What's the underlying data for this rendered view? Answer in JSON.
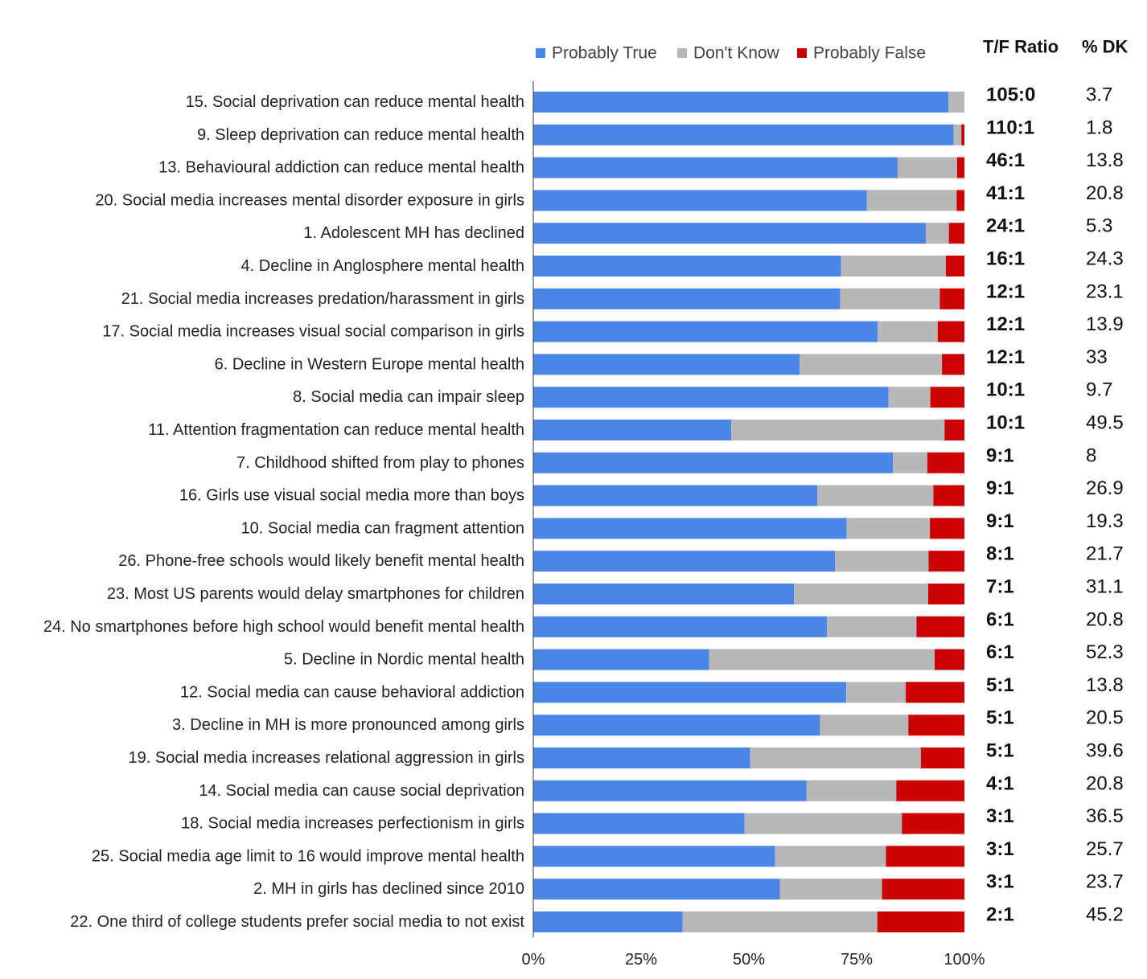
{
  "chart_data": {
    "type": "bar",
    "orientation": "horizontal",
    "stacked": true,
    "legend_position": "top",
    "xlim": [
      0,
      100
    ],
    "x_ticks": [
      "0%",
      "25%",
      "50%",
      "75%",
      "100%"
    ],
    "categories": [
      "15. Social deprivation can reduce mental health",
      "9. Sleep deprivation can reduce mental health",
      "13. Behavioural addiction can reduce mental health",
      "20. Social media increases mental disorder exposure in girls",
      "1. Adolescent MH has declined",
      "4. Decline in Anglosphere mental health",
      "21. Social media increases predation/harassment in girls",
      "17. Social media increases visual social comparison in girls",
      "6. Decline in Western Europe mental health",
      "8. Social media can impair sleep",
      "11. Attention fragmentation can reduce mental health",
      "7. Childhood shifted from play to phones",
      "16. Girls use visual social media more than boys",
      "10. Social media can fragment attention",
      "26. Phone-free schools would likely benefit mental health",
      "23. Most US parents would delay smartphones for children",
      "24. No smartphones before high school would benefit mental health",
      "5. Decline in Nordic mental health",
      "12. Social media can cause behavioral addiction",
      "3. Decline in MH is more pronounced among girls",
      "19. Social media increases relational aggression in girls",
      "14. Social media can cause social deprivation",
      "18. Social media increases perfectionism in girls",
      "25. Social media age limit to 16 would improve mental health",
      "2. MH in girls has declined since 2010",
      "22. One third of college students prefer social media to not exist"
    ],
    "series": [
      {
        "name": "Probably True",
        "color": "#4a86e8",
        "values": [
          96.3,
          97.5,
          84.5,
          77.4,
          91.1,
          71.4,
          71.2,
          79.9,
          61.8,
          82.4,
          45.9,
          83.4,
          65.9,
          72.7,
          70.0,
          60.5,
          68.1,
          40.8,
          72.6,
          66.5,
          50.3,
          63.4,
          49.0,
          56.1,
          57.2,
          34.6
        ]
      },
      {
        "name": "Don't Know",
        "color": "#b7b7b7",
        "values": [
          3.7,
          1.8,
          13.8,
          20.8,
          5.3,
          24.3,
          23.1,
          13.9,
          33,
          9.7,
          49.5,
          8,
          26.9,
          19.3,
          21.7,
          31.1,
          20.8,
          52.3,
          13.8,
          20.5,
          39.6,
          20.8,
          36.5,
          25.7,
          23.7,
          45.2
        ]
      },
      {
        "name": "Probably False",
        "color": "#cc0000",
        "values": [
          0,
          0.7,
          1.7,
          1.8,
          3.6,
          4.3,
          5.7,
          6.2,
          5.2,
          7.9,
          4.6,
          8.6,
          7.2,
          8.0,
          8.3,
          8.4,
          11.1,
          6.9,
          13.6,
          13.0,
          10.1,
          15.8,
          14.5,
          18.2,
          19.1,
          20.2
        ]
      }
    ],
    "columns": {
      "ratio_header": "T/F Ratio",
      "dk_header": "% DK",
      "ratio": [
        "105:0",
        "110:1",
        "46:1",
        "41:1",
        "24:1",
        "16:1",
        "12:1",
        "12:1",
        "12:1",
        "10:1",
        "10:1",
        "9:1",
        "9:1",
        "9:1",
        "8:1",
        "7:1",
        "6:1",
        "6:1",
        "5:1",
        "5:1",
        "5:1",
        "4:1",
        "3:1",
        "3:1",
        "3:1",
        "2:1"
      ],
      "dk": [
        "3.7",
        "1.8",
        "13.8",
        "20.8",
        "5.3",
        "24.3",
        "23.1",
        "13.9",
        "33",
        "9.7",
        "49.5",
        "8",
        "26.9",
        "19.3",
        "21.7",
        "31.1",
        "20.8",
        "52.3",
        "13.8",
        "20.5",
        "39.6",
        "20.8",
        "36.5",
        "25.7",
        "23.7",
        "45.2"
      ]
    }
  }
}
